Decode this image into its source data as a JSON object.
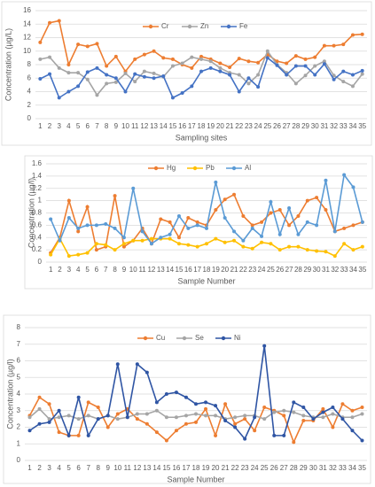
{
  "chart_data": [
    {
      "type": "line",
      "y_label": "Concentration (µg/L)",
      "x_label": "Sampling sites",
      "categories": [
        "1",
        "2",
        "3",
        "4",
        "5",
        "6",
        "7",
        "8",
        "9",
        "10",
        "11",
        "12",
        "13",
        "14",
        "15",
        "16",
        "17",
        "18",
        "19",
        "20",
        "21",
        "22",
        "23",
        "24",
        "25",
        "26",
        "27",
        "28",
        "29",
        "30",
        "31",
        "32",
        "33",
        "34",
        "35"
      ],
      "series": [
        {
          "name": "Cr",
          "color": "#ed7d31",
          "values": [
            11.3,
            14.2,
            14.5,
            8,
            11,
            10.7,
            11.1,
            7.8,
            9.2,
            7,
            8.8,
            9.5,
            10,
            9,
            8.8,
            8,
            7.5,
            9.2,
            8.8,
            8.2,
            7.6,
            8.9,
            8.5,
            8.3,
            9.5,
            8.5,
            8.2,
            9.3,
            8.8,
            9.1,
            10.8,
            10.8,
            11,
            12.4,
            12.5
          ]
        },
        {
          "name": "Zn",
          "color": "#a5a5a5",
          "values": [
            8.8,
            9.1,
            7.5,
            6.8,
            6.8,
            5.8,
            3.5,
            5.2,
            5.4,
            6.7,
            5.5,
            7,
            6.7,
            6.2,
            7.8,
            8.2,
            9.1,
            8.8,
            8.5,
            7.5,
            6.8,
            6.5,
            5.2,
            6.5,
            10,
            8,
            6.8,
            5.2,
            6.4,
            7.8,
            8.5,
            6.4,
            5.5,
            4.8,
            6.6
          ]
        },
        {
          "name": "Fe",
          "color": "#4472c4",
          "values": [
            5.9,
            6.6,
            3.1,
            4,
            4.8,
            6.9,
            7.5,
            6.5,
            6,
            4,
            6.6,
            6.2,
            6,
            6.3,
            3.1,
            3.8,
            4.8,
            7,
            7.5,
            7,
            6.5,
            4,
            6,
            4.7,
            9,
            7.9,
            6.5,
            7.8,
            7.8,
            6.5,
            8.1,
            5.8,
            7,
            6.5,
            7.1
          ]
        }
      ],
      "ylim": [
        0,
        16
      ],
      "yticks": [
        0,
        2,
        4,
        6,
        8,
        10,
        12,
        14,
        16
      ],
      "grid": true,
      "legend": "top"
    },
    {
      "type": "line",
      "y_label": "Concentration (µg/l)",
      "x_label": "Sample Number",
      "categories": [
        "1",
        "2",
        "3",
        "4",
        "5",
        "6",
        "7",
        "8",
        "9",
        "10",
        "11",
        "12",
        "13",
        "14",
        "15",
        "16",
        "17",
        "18",
        "19",
        "20",
        "21",
        "22",
        "23",
        "24",
        "25",
        "26",
        "27",
        "28",
        "29",
        "30",
        "31",
        "32",
        "33",
        "34",
        "35"
      ],
      "series": [
        {
          "name": "Hg",
          "color": "#ed7d31",
          "values": [
            0.15,
            0.4,
            1.0,
            0.5,
            0.9,
            0.2,
            0.25,
            1.08,
            0.25,
            0.35,
            0.55,
            0.3,
            0.7,
            0.65,
            0.4,
            0.72,
            0.65,
            0.6,
            0.85,
            1.02,
            1.1,
            0.75,
            0.6,
            0.65,
            0.8,
            0.85,
            0.6,
            0.75,
            1.0,
            1.05,
            0.85,
            0.5,
            0.55,
            0.6,
            0.65
          ]
        },
        {
          "name": "Pb",
          "color": "#ffc000",
          "values": [
            0.12,
            0.38,
            0.1,
            0.12,
            0.15,
            0.3,
            0.28,
            0.2,
            0.3,
            0.35,
            0.35,
            0.38,
            0.38,
            0.38,
            0.3,
            0.28,
            0.25,
            0.3,
            0.38,
            0.32,
            0.35,
            0.25,
            0.22,
            0.32,
            0.3,
            0.2,
            0.25,
            0.25,
            0.2,
            0.18,
            0.17,
            0.1,
            0.3,
            0.2,
            0.25
          ]
        },
        {
          "name": "Al",
          "color": "#5b9bd5",
          "values": [
            0.7,
            0.35,
            0.72,
            0.55,
            0.6,
            0.6,
            0.62,
            0.55,
            0.4,
            1.2,
            0.5,
            0.3,
            0.4,
            0.45,
            0.75,
            0.55,
            0.6,
            0.55,
            1.3,
            0.72,
            0.5,
            0.35,
            0.55,
            0.42,
            0.98,
            0.45,
            0.88,
            0.45,
            0.65,
            0.6,
            1.33,
            0.5,
            1.42,
            1.22,
            0.65
          ]
        }
      ],
      "ylim": [
        0,
        1.6
      ],
      "yticks": [
        0,
        0.2,
        0.4,
        0.6,
        0.8,
        1,
        1.2,
        1.4,
        1.6
      ],
      "grid": true,
      "legend": "top"
    },
    {
      "type": "line",
      "y_label": "Concentration (µg/l)",
      "x_label": "Sample Number",
      "categories": [
        "1",
        "2",
        "3",
        "4",
        "5",
        "6",
        "7",
        "8",
        "9",
        "10",
        "11",
        "12",
        "13",
        "14",
        "15",
        "16",
        "17",
        "18",
        "19",
        "20",
        "21",
        "22",
        "23",
        "24",
        "25",
        "26",
        "27",
        "28",
        "29",
        "30",
        "31",
        "32",
        "33",
        "34",
        "35"
      ],
      "series": [
        {
          "name": "Cu",
          "color": "#ed7d31",
          "values": [
            2.7,
            3.8,
            3.4,
            1.7,
            1.5,
            1.5,
            3.5,
            3.2,
            2,
            2.8,
            3.1,
            2.5,
            2.2,
            1.7,
            1.2,
            1.8,
            2.2,
            2.3,
            3.1,
            1.5,
            3.4,
            2.2,
            2.5,
            1.8,
            3.2,
            3,
            2.7,
            1.1,
            2.4,
            2.4,
            3.1,
            2,
            3.4,
            3,
            3.2
          ]
        },
        {
          "name": "Se",
          "color": "#a5a5a5",
          "values": [
            2.6,
            3.1,
            2.5,
            2.6,
            2.7,
            2.5,
            2.7,
            2.5,
            2.7,
            2.5,
            2.6,
            2.8,
            2.8,
            3,
            2.6,
            2.6,
            2.7,
            2.8,
            2.7,
            2.7,
            2.5,
            2.6,
            2.7,
            2.7,
            2.5,
            2.9,
            3,
            2.9,
            2.7,
            2.6,
            2.6,
            2.8,
            2.6,
            2.6,
            2.8
          ]
        },
        {
          "name": "Ni",
          "color": "#2f55a4",
          "values": [
            1.8,
            2.2,
            2.3,
            3,
            1.5,
            3.8,
            1.5,
            2.5,
            2.7,
            5.8,
            2.6,
            5.8,
            5.3,
            3.5,
            4,
            4.1,
            3.8,
            3.4,
            3.5,
            3.3,
            2.4,
            2,
            1.3,
            2.6,
            6.9,
            1.5,
            1.5,
            3.5,
            3.2,
            2.5,
            2.9,
            3.2,
            2.5,
            1.8,
            1.2
          ]
        }
      ],
      "ylim": [
        0,
        8
      ],
      "yticks": [
        0,
        1,
        2,
        3,
        4,
        5,
        6,
        7,
        8
      ],
      "grid": true,
      "legend": "top"
    }
  ]
}
